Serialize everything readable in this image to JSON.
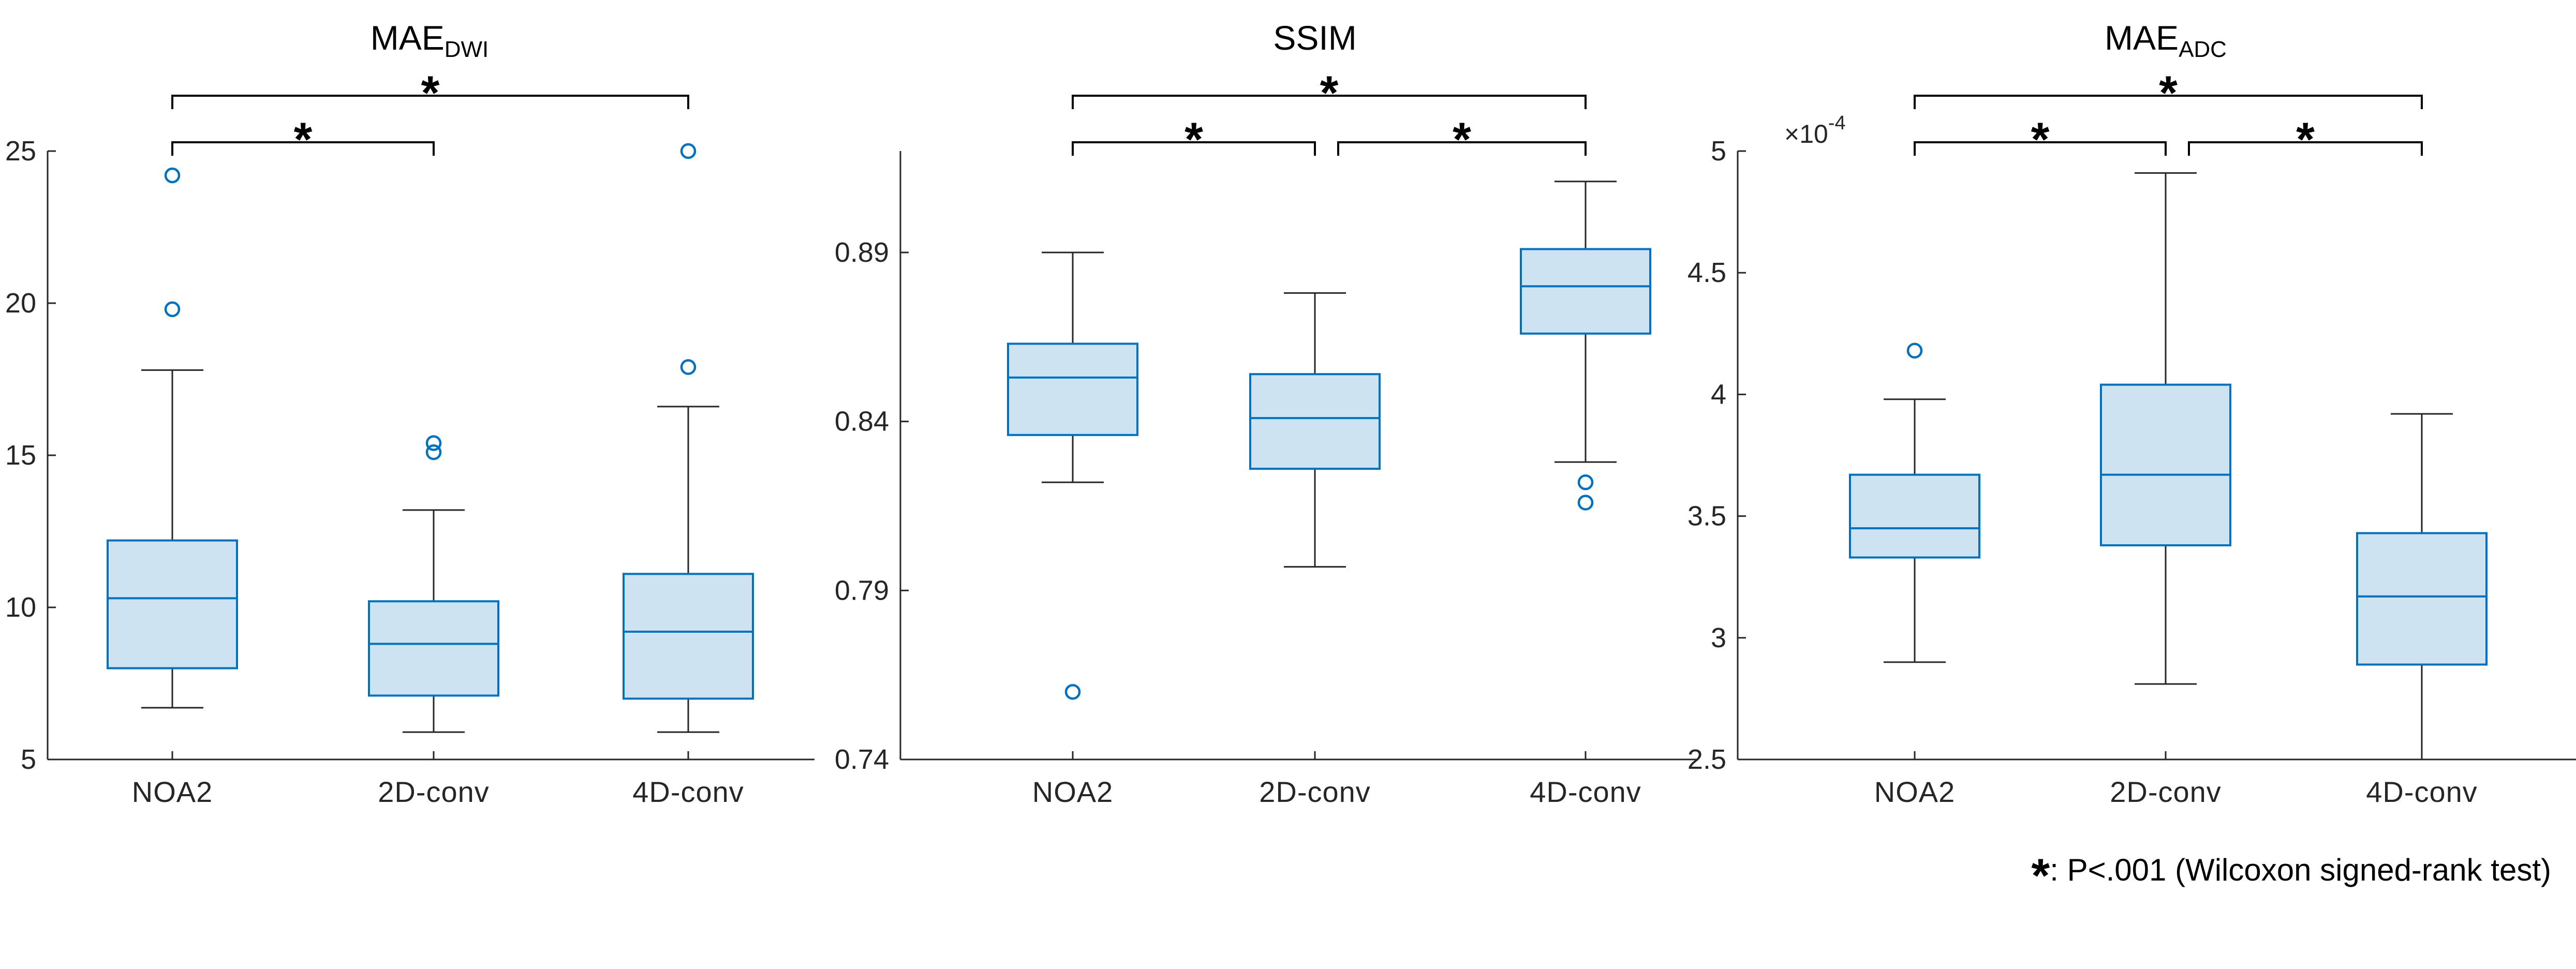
{
  "chart_data": [
    {
      "type": "boxplot",
      "title": "MAE",
      "title_subscript": "DWI",
      "xlabel": "",
      "ylabel": "",
      "ylim": [
        5,
        25
      ],
      "yticks": [
        5,
        10,
        15,
        20,
        25
      ],
      "ytick_labels": [
        "5",
        "10",
        "15",
        "20",
        "25"
      ],
      "categories": [
        "NOA2",
        "2D-conv",
        "4D-conv"
      ],
      "boxes": [
        {
          "name": "NOA2",
          "whisker_low": 6.7,
          "q1": 8.0,
          "median": 10.3,
          "q3": 12.2,
          "whisker_high": 17.8,
          "outliers": [
            19.8,
            24.2
          ]
        },
        {
          "name": "2D-conv",
          "whisker_low": 5.9,
          "q1": 7.1,
          "median": 8.8,
          "q3": 10.2,
          "whisker_high": 13.2,
          "outliers": [
            15.1,
            15.4
          ]
        },
        {
          "name": "4D-conv",
          "whisker_low": 5.9,
          "q1": 7.0,
          "median": 9.2,
          "q3": 11.1,
          "whisker_high": 16.6,
          "outliers": [
            17.9,
            25.0
          ]
        }
      ],
      "significance": [
        {
          "from": 0,
          "to": 2,
          "level": 2,
          "label": "*"
        },
        {
          "from": 0,
          "to": 1,
          "level": 1,
          "label": "*"
        }
      ]
    },
    {
      "type": "boxplot",
      "title": "SSIM",
      "title_subscript": "",
      "xlabel": "",
      "ylabel": "",
      "ylim": [
        0.74,
        0.92
      ],
      "yticks": [
        0.74,
        0.79,
        0.84,
        0.89
      ],
      "ytick_labels": [
        "0.74",
        "0.79",
        "0.84",
        "0.89"
      ],
      "categories": [
        "NOA2",
        "2D-conv",
        "4D-conv"
      ],
      "boxes": [
        {
          "name": "NOA2",
          "whisker_low": 0.822,
          "q1": 0.836,
          "median": 0.853,
          "q3": 0.863,
          "whisker_high": 0.89,
          "outliers": [
            0.76
          ]
        },
        {
          "name": "2D-conv",
          "whisker_low": 0.797,
          "q1": 0.826,
          "median": 0.841,
          "q3": 0.854,
          "whisker_high": 0.878,
          "outliers": []
        },
        {
          "name": "4D-conv",
          "whisker_low": 0.828,
          "q1": 0.866,
          "median": 0.88,
          "q3": 0.891,
          "whisker_high": 0.911,
          "outliers": [
            0.822,
            0.816
          ]
        }
      ],
      "significance": [
        {
          "from": 0,
          "to": 2,
          "level": 2,
          "label": "*"
        },
        {
          "from": 0,
          "to": 1,
          "level": 1,
          "label": "*"
        },
        {
          "from": 1,
          "to": 2,
          "level": 1,
          "label": "*"
        }
      ]
    },
    {
      "type": "boxplot",
      "title": "MAE",
      "title_subscript": "ADC",
      "xlabel": "",
      "ylabel": "",
      "ylim": [
        2.5,
        5
      ],
      "yticks": [
        2.5,
        3,
        3.5,
        4,
        4.5,
        5
      ],
      "ytick_labels": [
        "2.5",
        "3",
        "3.5",
        "4",
        "4.5",
        "5"
      ],
      "axis_multiplier": "×10",
      "axis_multiplier_exponent": "-4",
      "categories": [
        "NOA2",
        "2D-conv",
        "4D-conv"
      ],
      "boxes": [
        {
          "name": "NOA2",
          "whisker_low": 2.9,
          "q1": 3.33,
          "median": 3.45,
          "q3": 3.67,
          "whisker_high": 3.98,
          "outliers": [
            4.18
          ]
        },
        {
          "name": "2D-conv",
          "whisker_low": 2.81,
          "q1": 3.38,
          "median": 3.67,
          "q3": 4.04,
          "whisker_high": 4.91,
          "outliers": []
        },
        {
          "name": "4D-conv",
          "whisker_low": 2.5,
          "q1": 2.89,
          "median": 3.17,
          "q3": 3.43,
          "whisker_high": 3.92,
          "outliers": []
        }
      ],
      "significance": [
        {
          "from": 0,
          "to": 2,
          "level": 2,
          "label": "*"
        },
        {
          "from": 0,
          "to": 1,
          "level": 1,
          "label": "*"
        },
        {
          "from": 1,
          "to": 2,
          "level": 1,
          "label": "*"
        }
      ]
    }
  ],
  "footnote": {
    "symbol": "*",
    "text": ": P<.001 (Wilcoxon signed-rank test)"
  },
  "colors": {
    "box_fill": "#cde3f2",
    "box_edge": "#0072bd",
    "whisker": "#262626",
    "outlier": "#0072bd",
    "axis": "#262626",
    "bracket": "#000000"
  }
}
